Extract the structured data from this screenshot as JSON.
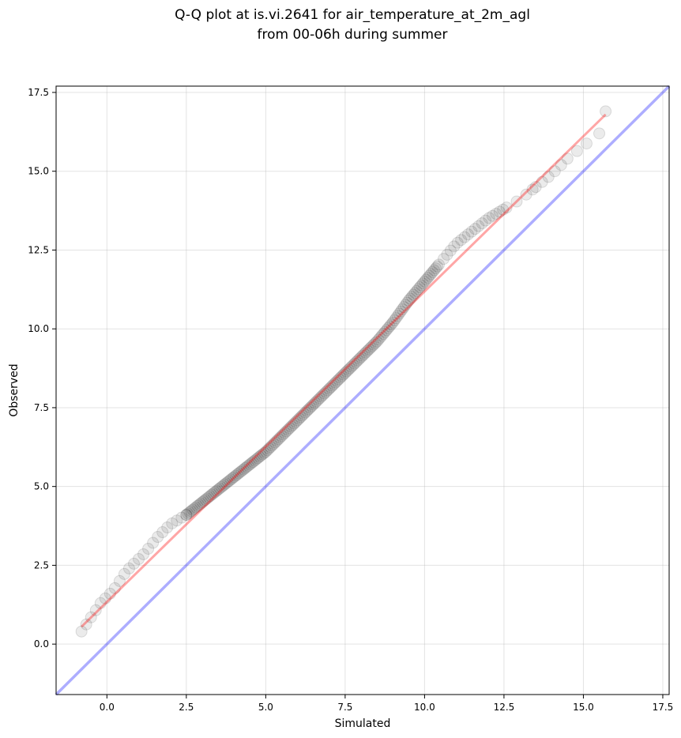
{
  "chart_data": {
    "type": "scatter",
    "title_line1": "Q-Q plot at is.vi.2641 for air_temperature_at_2m_agl",
    "title_line2": "from 00-06h during summer",
    "xlabel": "Simulated",
    "ylabel": "Observed",
    "xlim": [
      -1.6,
      17.7
    ],
    "ylim": [
      -1.6,
      17.7
    ],
    "xticks": [
      0.0,
      2.5,
      5.0,
      7.5,
      10.0,
      12.5,
      15.0,
      17.5
    ],
    "yticks": [
      0.0,
      2.5,
      5.0,
      7.5,
      10.0,
      12.5,
      15.0,
      17.5
    ],
    "xtick_labels": [
      "0.0",
      "2.5",
      "5.0",
      "7.5",
      "10.0",
      "12.5",
      "15.0",
      "17.5"
    ],
    "ytick_labels": [
      "0.0",
      "2.5",
      "5.0",
      "7.5",
      "10.0",
      "12.5",
      "15.0",
      "17.5"
    ],
    "grid": true,
    "quantile_anchors": {
      "x": [
        -0.8,
        -0.6,
        -0.4,
        -0.2,
        0.0,
        0.2,
        0.4,
        0.6,
        0.9,
        1.2,
        1.6,
        2.0,
        2.5,
        3.0,
        3.5,
        4.0,
        4.5,
        5.0,
        5.5,
        6.0,
        6.5,
        7.0,
        7.5,
        8.0,
        8.5,
        9.0,
        9.5,
        10.0,
        10.5,
        11.0,
        11.5,
        12.0,
        12.5,
        13.0,
        13.5,
        14.0,
        14.5,
        15.0,
        15.5,
        15.7
      ],
      "y": [
        0.4,
        0.7,
        1.0,
        1.3,
        1.5,
        1.7,
        2.0,
        2.3,
        2.6,
        2.9,
        3.4,
        3.8,
        4.1,
        4.5,
        4.9,
        5.3,
        5.7,
        6.1,
        6.6,
        7.1,
        7.6,
        8.1,
        8.6,
        9.1,
        9.6,
        10.2,
        10.9,
        11.5,
        12.1,
        12.7,
        13.1,
        13.5,
        13.8,
        14.1,
        14.5,
        14.9,
        15.4,
        15.8,
        16.2,
        16.9
      ]
    },
    "series": [
      {
        "name": "",
        "kind": "quantile_points",
        "color": "#000000",
        "density": "dense between 2.5 and 10.5"
      },
      {
        "name": "",
        "kind": "fit_line",
        "color": "#ff0000",
        "x": [
          -0.8,
          15.7
        ],
        "y": [
          0.55,
          16.8
        ]
      },
      {
        "name": "",
        "kind": "identity_line",
        "color": "#0000ff",
        "x": [
          -1.6,
          17.7
        ],
        "y": [
          -1.6,
          17.7
        ]
      }
    ]
  }
}
